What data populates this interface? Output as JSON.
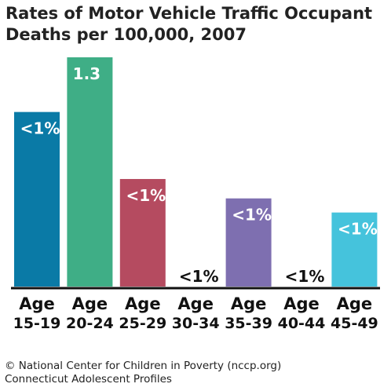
{
  "chart_data": {
    "type": "bar",
    "title": "Rates of Motor Vehicle Traffic Occupant Deaths per 100,000, 2007",
    "categories": [
      "Age 15-19",
      "Age 20-24",
      "Age 25-29",
      "Age 30-34",
      "Age 35-39",
      "Age 40-44",
      "Age 45-49"
    ],
    "category_lines": [
      [
        "Age",
        "15-19"
      ],
      [
        "Age",
        "20-24"
      ],
      [
        "Age",
        "25-29"
      ],
      [
        "Age",
        "30-34"
      ],
      [
        "Age",
        "35-39"
      ],
      [
        "Age",
        "40-44"
      ],
      [
        "Age",
        "45-49"
      ]
    ],
    "values": [
      0.99,
      1.3,
      0.61,
      0,
      0.5,
      0,
      0.42
    ],
    "data_labels": [
      "<1%",
      "1.3",
      "<1%",
      "<1%",
      "<1%",
      "<1%",
      "<1%"
    ],
    "colors": [
      "#0a7aa6",
      "#3fae86",
      "#b54b60",
      "#ffffff",
      "#7e6fb0",
      "#ffffff",
      "#45c3dc"
    ],
    "ylim": [
      0,
      1.3
    ],
    "xlabel": "",
    "ylabel": "",
    "grid": false
  },
  "footer": {
    "line1": "© National Center for Children in Poverty (nccp.org)",
    "line2": "Connecticut Adolescent Profiles"
  }
}
